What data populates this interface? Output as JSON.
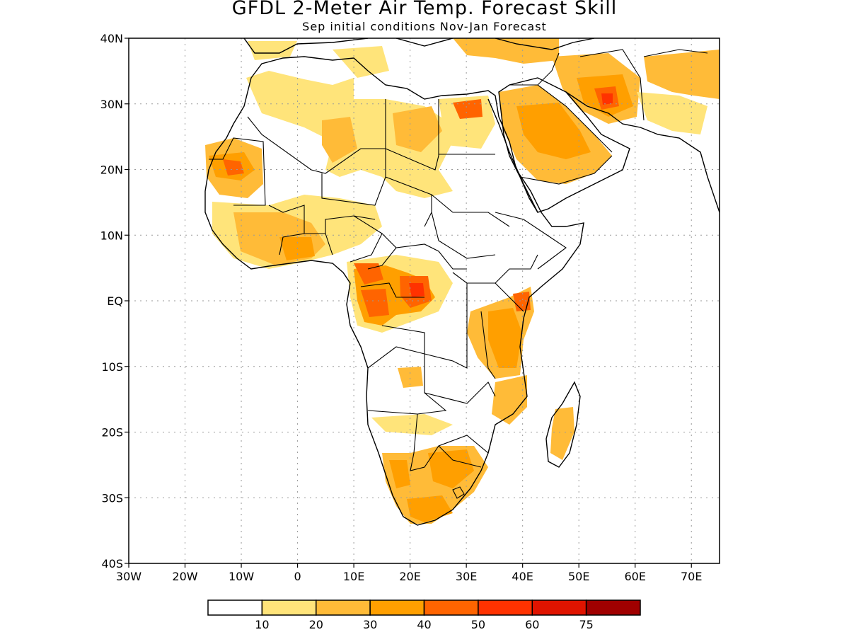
{
  "title": "GFDL 2-Meter Air Temp. Forecast Skill",
  "subtitle": "Sep initial conditions  Nov-Jan Forecast",
  "map": {
    "lon_range": [
      -30,
      75
    ],
    "lat_range": [
      -40,
      40
    ],
    "lat_ticks": [
      {
        "value": 40,
        "label": "40N"
      },
      {
        "value": 30,
        "label": "30N"
      },
      {
        "value": 20,
        "label": "20N"
      },
      {
        "value": 10,
        "label": "10N"
      },
      {
        "value": 0,
        "label": "EQ"
      },
      {
        "value": -10,
        "label": "10S"
      },
      {
        "value": -20,
        "label": "20S"
      },
      {
        "value": -30,
        "label": "30S"
      },
      {
        "value": -40,
        "label": "40S"
      }
    ],
    "lon_ticks": [
      {
        "value": -30,
        "label": "30W"
      },
      {
        "value": -20,
        "label": "20W"
      },
      {
        "value": -10,
        "label": "10W"
      },
      {
        "value": 0,
        "label": "0"
      },
      {
        "value": 10,
        "label": "10E"
      },
      {
        "value": 20,
        "label": "20E"
      },
      {
        "value": 30,
        "label": "30E"
      },
      {
        "value": 40,
        "label": "40E"
      },
      {
        "value": 50,
        "label": "50E"
      },
      {
        "value": 60,
        "label": "60E"
      },
      {
        "value": 70,
        "label": "70E"
      }
    ],
    "grid": true,
    "colors": {
      "coast": "#000000",
      "grid": "#9a9a9a"
    }
  },
  "colorbar": {
    "colors": [
      "#ffffff",
      "#ffe47a",
      "#ffbb38",
      "#ff9f00",
      "#ff6400",
      "#ff3200",
      "#e01400",
      "#a00000"
    ],
    "labels": [
      "10",
      "20",
      "30",
      "40",
      "50",
      "60",
      "75"
    ]
  }
}
